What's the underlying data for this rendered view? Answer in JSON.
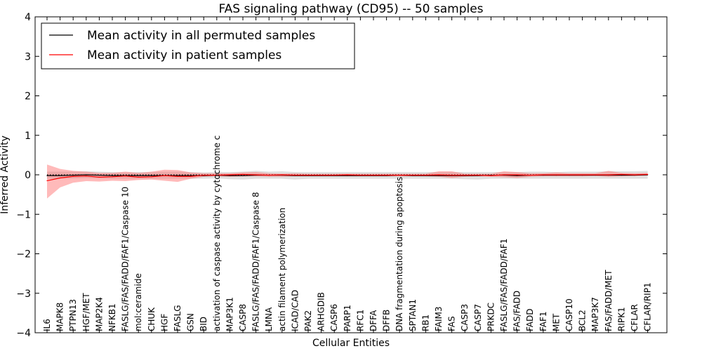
{
  "chart_data": {
    "type": "line",
    "title": "FAS signaling pathway (CD95) -- 50 samples",
    "xlabel": "Cellular Entities",
    "ylabel": "Inferred Activity",
    "ylim": [
      -4,
      4
    ],
    "yticks": [
      -4,
      -3,
      -2,
      -1,
      0,
      1,
      2,
      3,
      4
    ],
    "ytick_labels": [
      "−4",
      "−3",
      "−2",
      "−1",
      "0",
      "1",
      "2",
      "3",
      "4"
    ],
    "grid": false,
    "legend_position": "top-left",
    "categories": [
      "IL6",
      "MAPK8",
      "PTPN13",
      "HGF/MET",
      "MAP2K4",
      "NFKB1",
      "FASLG/FAS/FADD/FAF1/Caspase 10",
      "mol:ceramide",
      "CHUK",
      "HGF",
      "FASLG",
      "GSN",
      "BID",
      "activation of caspase activity by cytochrome c",
      "MAP3K1",
      "CASP8",
      "FASLG/FAS/FADD/FAF1/Caspase 8",
      "LMNA",
      "actin filament polymerization",
      "ICAD/CAD",
      "PAK2",
      "ARHGDIB",
      "CASP6",
      "PARP1",
      "RFC1",
      "DFFA",
      "DFFB",
      "DNA fragmentation during apoptosis",
      "SPTAN1",
      "RB1",
      "FAIM3",
      "FAS",
      "CASP3",
      "CASP7",
      "PRKDC",
      "FASLG/FAS/FADD/FAF1",
      "FAS/FADD",
      "FADD",
      "FAF1",
      "MET",
      "CASP10",
      "BCL2",
      "MAP3K7",
      "FAS/FADD/MET",
      "RIPK1",
      "CFLAR",
      "CFLAR/RIP1"
    ],
    "series": [
      {
        "name": "Mean activity in all permuted samples",
        "color": "#000000",
        "values": [
          -0.02,
          -0.02,
          -0.01,
          0,
          -0.01,
          -0.02,
          -0.02,
          -0.02,
          -0.02,
          -0.02,
          -0.02,
          -0.02,
          -0.02,
          -0.01,
          -0.02,
          -0.02,
          -0.01,
          -0.01,
          -0.01,
          -0.02,
          -0.02,
          -0.02,
          -0.02,
          -0.02,
          -0.02,
          -0.02,
          -0.02,
          -0.01,
          -0.02,
          -0.02,
          -0.02,
          -0.02,
          -0.02,
          -0.02,
          -0.01,
          -0.01,
          -0.02,
          -0.01,
          -0.01,
          -0.01,
          -0.01,
          -0.01,
          -0.01,
          -0.01,
          -0.01,
          -0.01,
          0
        ],
        "band_lower": [
          -0.1,
          -0.1,
          -0.09,
          -0.08,
          -0.09,
          -0.1,
          -0.1,
          -0.1,
          -0.1,
          -0.1,
          -0.1,
          -0.1,
          -0.1,
          -0.09,
          -0.11,
          -0.12,
          -0.1,
          -0.1,
          -0.1,
          -0.12,
          -0.1,
          -0.1,
          -0.1,
          -0.1,
          -0.1,
          -0.1,
          -0.1,
          -0.1,
          -0.1,
          -0.1,
          -0.1,
          -0.1,
          -0.11,
          -0.12,
          -0.1,
          -0.1,
          -0.1,
          -0.1,
          -0.1,
          -0.1,
          -0.1,
          -0.1,
          -0.1,
          -0.1,
          -0.1,
          -0.1,
          -0.1
        ],
        "band_upper": [
          0.08,
          0.08,
          0.08,
          0.09,
          0.08,
          0.07,
          0.06,
          0.07,
          0.07,
          0.08,
          0.08,
          0.07,
          0.06,
          0.07,
          0.07,
          0.08,
          0.1,
          0.08,
          0.09,
          0.07,
          0.07,
          0.07,
          0.07,
          0.07,
          0.07,
          0.07,
          0.07,
          0.07,
          0.07,
          0.07,
          0.07,
          0.07,
          0.07,
          0.07,
          0.07,
          0.07,
          0.07,
          0.08,
          0.08,
          0.07,
          0.08,
          0.08,
          0.08,
          0.09,
          0.09,
          0.09,
          0.1
        ]
      },
      {
        "name": "Mean activity in patient samples",
        "color": "#ff0000",
        "values": [
          -0.15,
          -0.08,
          -0.04,
          -0.03,
          -0.06,
          -0.05,
          -0.03,
          -0.06,
          -0.05,
          -0.02,
          -0.04,
          -0.04,
          -0.01,
          -0.01,
          0,
          0.01,
          0,
          -0.01,
          0,
          -0.01,
          -0.01,
          -0.01,
          -0.01,
          0,
          -0.01,
          -0.01,
          -0.01,
          -0.01,
          -0.01,
          -0.01,
          0,
          -0.01,
          -0.01,
          -0.01,
          -0.02,
          0,
          0,
          -0.01,
          0,
          0,
          0,
          0,
          0,
          0,
          0.01,
          0,
          0.01
        ],
        "band_lower": [
          -0.6,
          -0.32,
          -0.2,
          -0.16,
          -0.17,
          -0.15,
          -0.16,
          -0.13,
          -0.12,
          -0.15,
          -0.18,
          -0.1,
          -0.05,
          -0.04,
          -0.05,
          -0.04,
          -0.04,
          -0.05,
          -0.05,
          -0.04,
          -0.04,
          -0.04,
          -0.04,
          -0.04,
          -0.04,
          -0.04,
          -0.04,
          -0.04,
          -0.04,
          -0.04,
          -0.05,
          -0.08,
          -0.05,
          -0.04,
          -0.05,
          -0.06,
          -0.08,
          -0.05,
          -0.04,
          -0.04,
          -0.04,
          -0.04,
          -0.03,
          -0.05,
          -0.04,
          -0.03,
          -0.02
        ],
        "band_upper": [
          0.26,
          0.15,
          0.1,
          0.08,
          0.05,
          0.05,
          0.08,
          0.05,
          0.08,
          0.13,
          0.12,
          0.06,
          0.04,
          0.04,
          0.04,
          0.06,
          0.07,
          0.04,
          0.03,
          0.04,
          0.03,
          0.03,
          0.03,
          0.03,
          0.03,
          0.03,
          0.03,
          0.03,
          0.03,
          0.03,
          0.09,
          0.09,
          0.03,
          0.03,
          0.03,
          0.09,
          0.07,
          0.04,
          0.04,
          0.06,
          0.04,
          0.04,
          0.04,
          0.1,
          0.05,
          0.04,
          0.05
        ]
      }
    ],
    "band_colors": {
      "permuted": "#bbbbbb",
      "patient": "#ff6666"
    },
    "zero_line": "dotted"
  }
}
